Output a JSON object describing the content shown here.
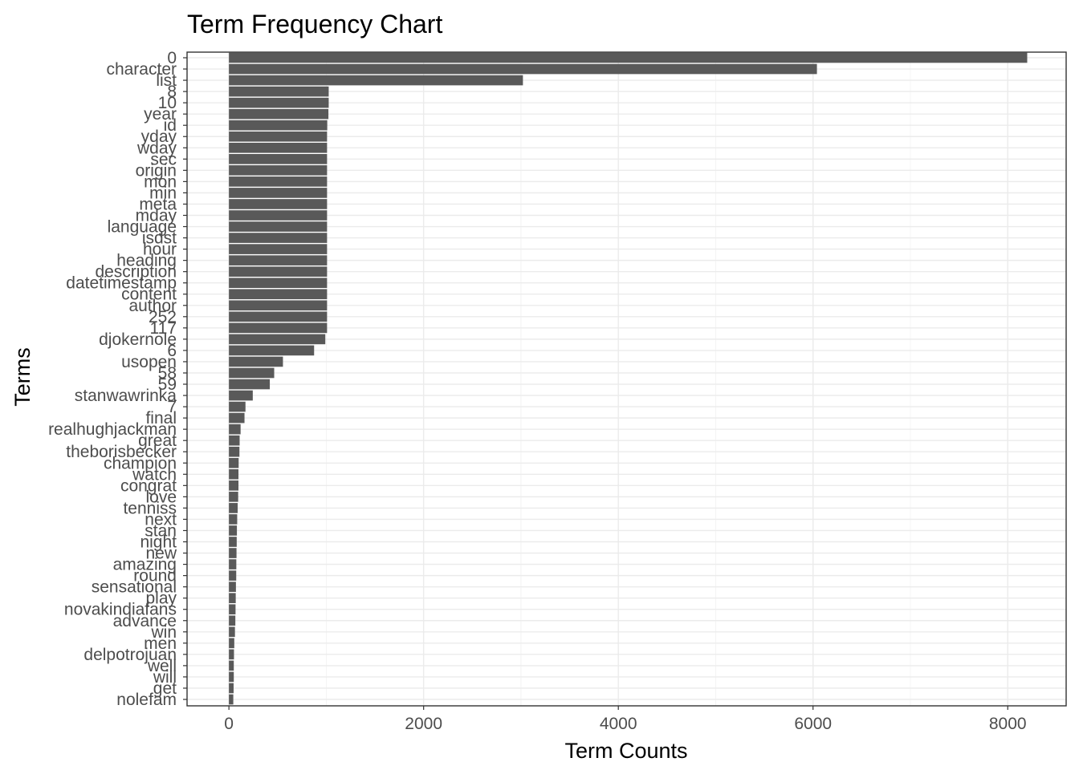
{
  "chart_data": {
    "type": "bar",
    "orientation": "horizontal",
    "title": "Term Frequency Chart",
    "xlabel": "Term Counts",
    "ylabel": "Terms",
    "xlim": [
      -430,
      8600
    ],
    "x_ticks": [
      0,
      2000,
      4000,
      6000,
      8000
    ],
    "x_tick_labels": [
      "0",
      "2000",
      "4000",
      "6000",
      "8000"
    ],
    "grid": true,
    "legend": "none",
    "bar_color": "#595959",
    "categories": [
      "0",
      "character",
      "list",
      "8",
      "10",
      "year",
      "id",
      "yday",
      "wday",
      "sec",
      "origin",
      "mon",
      "min",
      "meta",
      "mday",
      "language",
      "isdst",
      "hour",
      "heading",
      "description",
      "datetimestamp",
      "content",
      "author",
      "252",
      "117",
      "djokernole",
      "6",
      "usopen",
      "58",
      "59",
      "stanwawrinka",
      "7",
      "final",
      "realhughjackman",
      "great",
      "theborisbecker",
      "champion",
      "watch",
      "congrat",
      "love",
      "tenniss",
      "next",
      "stan",
      "night",
      "new",
      "amazing",
      "round",
      "sensational",
      "play",
      "novakindiafans",
      "advance",
      "win",
      "men",
      "delpotrojuan",
      "well",
      "will",
      "get",
      "nolefam"
    ],
    "values": [
      8200,
      6040,
      3020,
      1025,
      1025,
      1022,
      1010,
      1008,
      1008,
      1008,
      1008,
      1008,
      1008,
      1008,
      1008,
      1008,
      1008,
      1008,
      1008,
      1008,
      1008,
      1008,
      1008,
      1008,
      1008,
      990,
      875,
      555,
      465,
      420,
      245,
      170,
      160,
      120,
      110,
      108,
      100,
      98,
      98,
      95,
      90,
      85,
      82,
      80,
      78,
      76,
      75,
      72,
      70,
      68,
      66,
      62,
      55,
      52,
      50,
      50,
      48,
      45
    ]
  }
}
